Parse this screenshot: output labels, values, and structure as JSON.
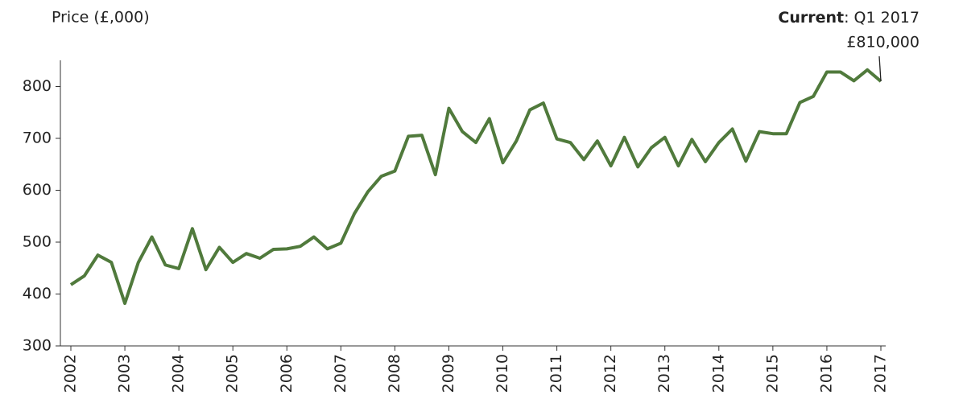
{
  "chart_data": {
    "type": "line",
    "y_label": "Price (£,000)",
    "annotation_bold": "Current",
    "annotation": ": Q1 2017",
    "annotation_value": "£810,000",
    "categories": [
      "2002",
      null,
      null,
      null,
      "2003",
      null,
      null,
      null,
      "2004",
      null,
      null,
      null,
      "2005",
      null,
      null,
      null,
      "2006",
      null,
      null,
      null,
      "2007",
      null,
      null,
      null,
      "2008",
      null,
      null,
      null,
      "2009",
      null,
      null,
      null,
      "2010",
      null,
      null,
      null,
      "2011",
      null,
      null,
      null,
      "2012",
      null,
      null,
      null,
      "2013",
      null,
      null,
      null,
      "2014",
      null,
      null,
      null,
      "2015",
      null,
      null,
      null,
      "2016",
      null,
      null,
      null,
      "2017"
    ],
    "values": [
      418,
      435,
      475,
      461,
      382,
      461,
      510,
      456,
      449,
      526,
      447,
      490,
      461,
      478,
      469,
      486,
      487,
      492,
      510,
      487,
      498,
      555,
      597,
      627,
      637,
      704,
      706,
      630,
      758,
      713,
      692,
      738,
      653,
      695,
      755,
      768,
      699,
      692,
      659,
      695,
      647,
      702,
      645,
      682,
      702,
      647,
      698,
      655,
      692,
      718,
      656,
      713,
      709,
      709,
      769,
      781,
      828,
      828,
      811,
      832,
      810
    ],
    "color": "#507a3c",
    "ylim": [
      300,
      800
    ],
    "yticks": [
      300,
      400,
      500,
      600,
      700,
      800
    ],
    "grid": false
  }
}
